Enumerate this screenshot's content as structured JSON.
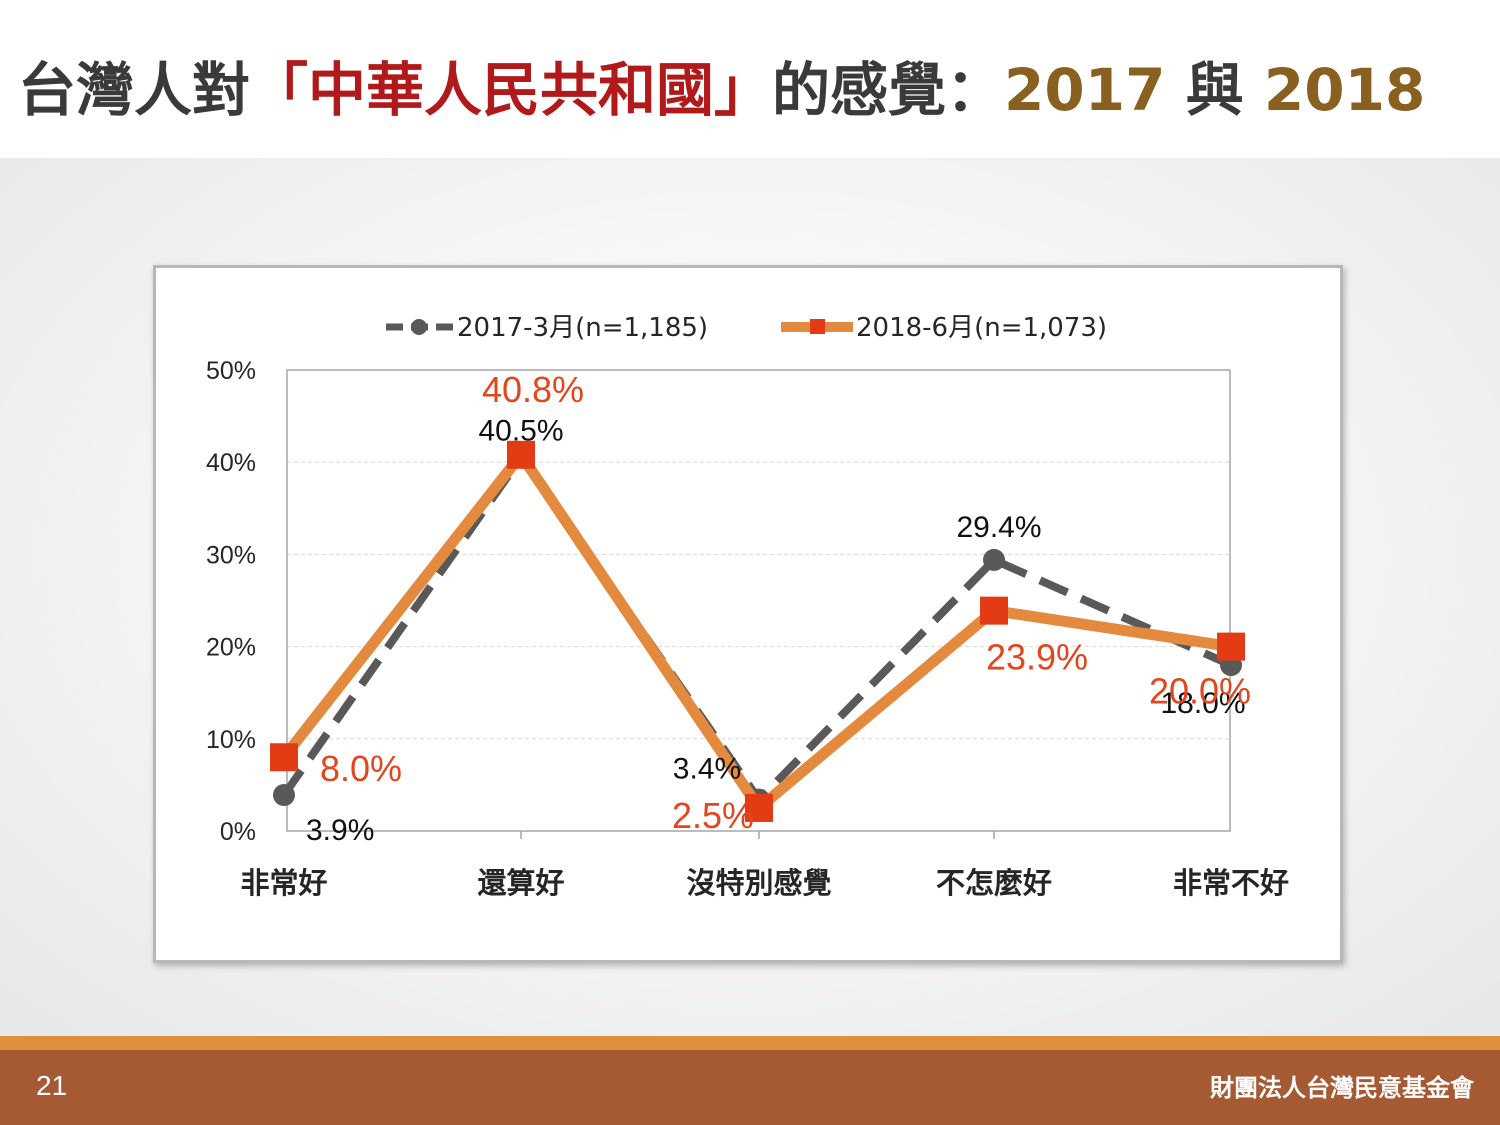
{
  "title": {
    "prefix": "台灣人對",
    "highlight": "「中華人民共和國」",
    "middle": "的感覺：",
    "year1": "2017",
    "joiner": " 與 ",
    "year2": "2018"
  },
  "colors": {
    "series_2017": "#595959",
    "series_2018": "#e38a3f",
    "marker_2018": "#e33c14",
    "label_2018": "#e2461e",
    "title_highlight": "#b01a1a",
    "title_year": "#8a6020",
    "footer": "#a65a33",
    "footer_accent": "#e08f3c"
  },
  "chart_data": {
    "type": "line",
    "categories": [
      "非常好",
      "還算好",
      "沒特別感覺",
      "不怎麼好",
      "非常不好"
    ],
    "ylim": [
      0,
      50
    ],
    "yticks": [
      "0%",
      "10%",
      "20%",
      "30%",
      "40%",
      "50%"
    ],
    "grid": true,
    "legend_position": "top",
    "series": [
      {
        "name": "2017-3月(n=1,185)",
        "values": [
          3.9,
          40.5,
          3.4,
          29.4,
          18.0
        ],
        "labels": [
          "3.9%",
          "40.5%",
          "3.4%",
          "29.4%",
          "18.0%"
        ],
        "style": "dashed",
        "marker": "circle"
      },
      {
        "name": "2018-6月(n=1,073)",
        "values": [
          8.0,
          40.8,
          2.5,
          23.9,
          20.0
        ],
        "labels": [
          "8.0%",
          "40.8%",
          "2.5%",
          "23.9%",
          "20.0%"
        ],
        "style": "solid",
        "marker": "square"
      }
    ]
  },
  "footer": {
    "page_number": "21",
    "organization": "財團法人台灣民意基金會"
  }
}
